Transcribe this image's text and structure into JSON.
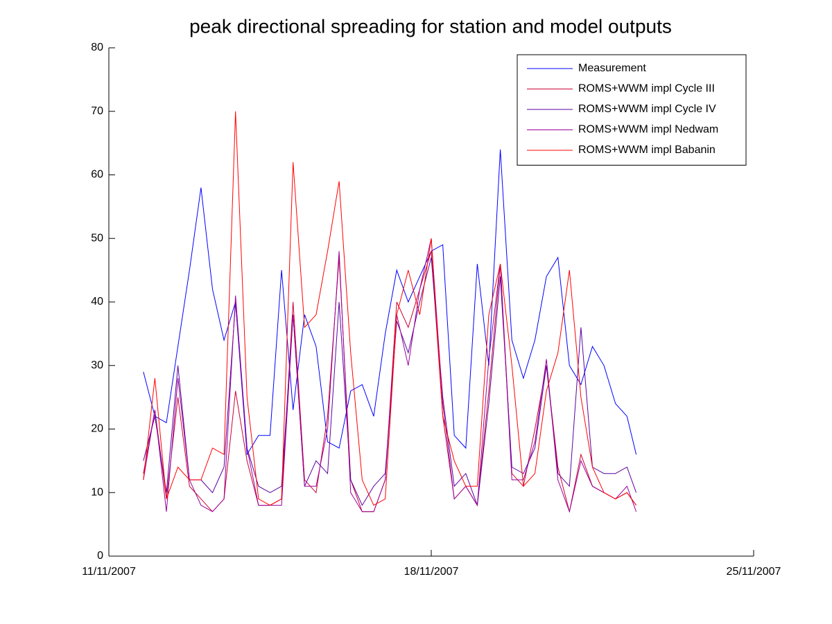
{
  "chart_data": {
    "type": "line",
    "title": "peak directional spreading for station and model outputs",
    "x": [
      0.75,
      1.0,
      1.25,
      1.5,
      1.75,
      2.0,
      2.25,
      2.5,
      2.75,
      3.0,
      3.25,
      3.5,
      3.75,
      4.0,
      4.25,
      4.5,
      4.75,
      5.0,
      5.25,
      5.5,
      5.75,
      6.0,
      6.25,
      6.5,
      6.75,
      7.0,
      7.25,
      7.5,
      7.75,
      8.0,
      8.25,
      8.5,
      8.75,
      9.0,
      9.25,
      9.5,
      9.75,
      10.0,
      10.25,
      10.5,
      10.75,
      11.0,
      11.25,
      11.45
    ],
    "series": [
      {
        "name": "Measurement",
        "color": "#0000ff",
        "values": [
          29,
          22,
          21,
          33,
          45,
          58,
          42,
          34,
          40,
          16,
          19,
          19,
          45,
          23,
          38,
          33,
          18,
          17,
          26,
          27,
          22,
          35,
          45,
          40,
          44,
          48,
          49,
          19,
          17,
          46,
          30,
          64,
          34,
          28,
          34,
          44,
          47,
          30,
          27,
          33,
          30,
          24,
          22,
          16
        ]
      },
      {
        "name": "ROMS+WWM impl Cycle III",
        "color": "#cc0033",
        "values": [
          13,
          23,
          9,
          25,
          11,
          9,
          7,
          9,
          26,
          15,
          8,
          8,
          9,
          40,
          12,
          10,
          22,
          47,
          12,
          7,
          7,
          12,
          40,
          36,
          42,
          48,
          22,
          9,
          11,
          8,
          26,
          46,
          13,
          11,
          20,
          30,
          14,
          7,
          16,
          11,
          10,
          9,
          10,
          8
        ]
      },
      {
        "name": "ROMS+WWM impl Cycle IV",
        "color": "#5a00a0",
        "values": [
          15,
          22,
          10,
          30,
          12,
          12,
          10,
          14,
          40,
          17,
          11,
          10,
          11,
          38,
          11,
          15,
          13,
          40,
          12,
          8,
          11,
          13,
          37,
          32,
          40,
          47,
          25,
          11,
          13,
          8,
          24,
          44,
          14,
          13,
          17,
          30,
          13,
          11,
          36,
          14,
          13,
          13,
          14,
          10
        ]
      },
      {
        "name": "ROMS+WWM impl Nedwam",
        "color": "#990099",
        "values": [
          12,
          23,
          7,
          28,
          12,
          8,
          7,
          9,
          41,
          17,
          8,
          8,
          8,
          38,
          11,
          11,
          20,
          48,
          10,
          7,
          7,
          12,
          38,
          30,
          42,
          50,
          24,
          9,
          11,
          8,
          31,
          46,
          12,
          12,
          18,
          31,
          12,
          7,
          15,
          11,
          10,
          9,
          11,
          7
        ]
      },
      {
        "name": "ROMS+WWM impl Babanin",
        "color": "#ff0000",
        "values": [
          12,
          28,
          9,
          14,
          12,
          12,
          17,
          16,
          70,
          25,
          9,
          8,
          9,
          62,
          36,
          38,
          48,
          59,
          32,
          12,
          8,
          9,
          38,
          45,
          38,
          50,
          22,
          15,
          11,
          11,
          38,
          46,
          30,
          11,
          13,
          26,
          32,
          45,
          25,
          14,
          10,
          9,
          10,
          8
        ]
      }
    ],
    "xlim": [
      0,
      14
    ],
    "xticks": [
      {
        "value": 0,
        "label": "11/11/2007"
      },
      {
        "value": 7,
        "label": "18/11/2007"
      },
      {
        "value": 14,
        "label": "25/11/2007"
      }
    ],
    "ylim": [
      0,
      80
    ],
    "yticks": [
      0,
      10,
      20,
      30,
      40,
      50,
      60,
      70,
      80
    ],
    "grid": false,
    "legend": "upper-right"
  }
}
